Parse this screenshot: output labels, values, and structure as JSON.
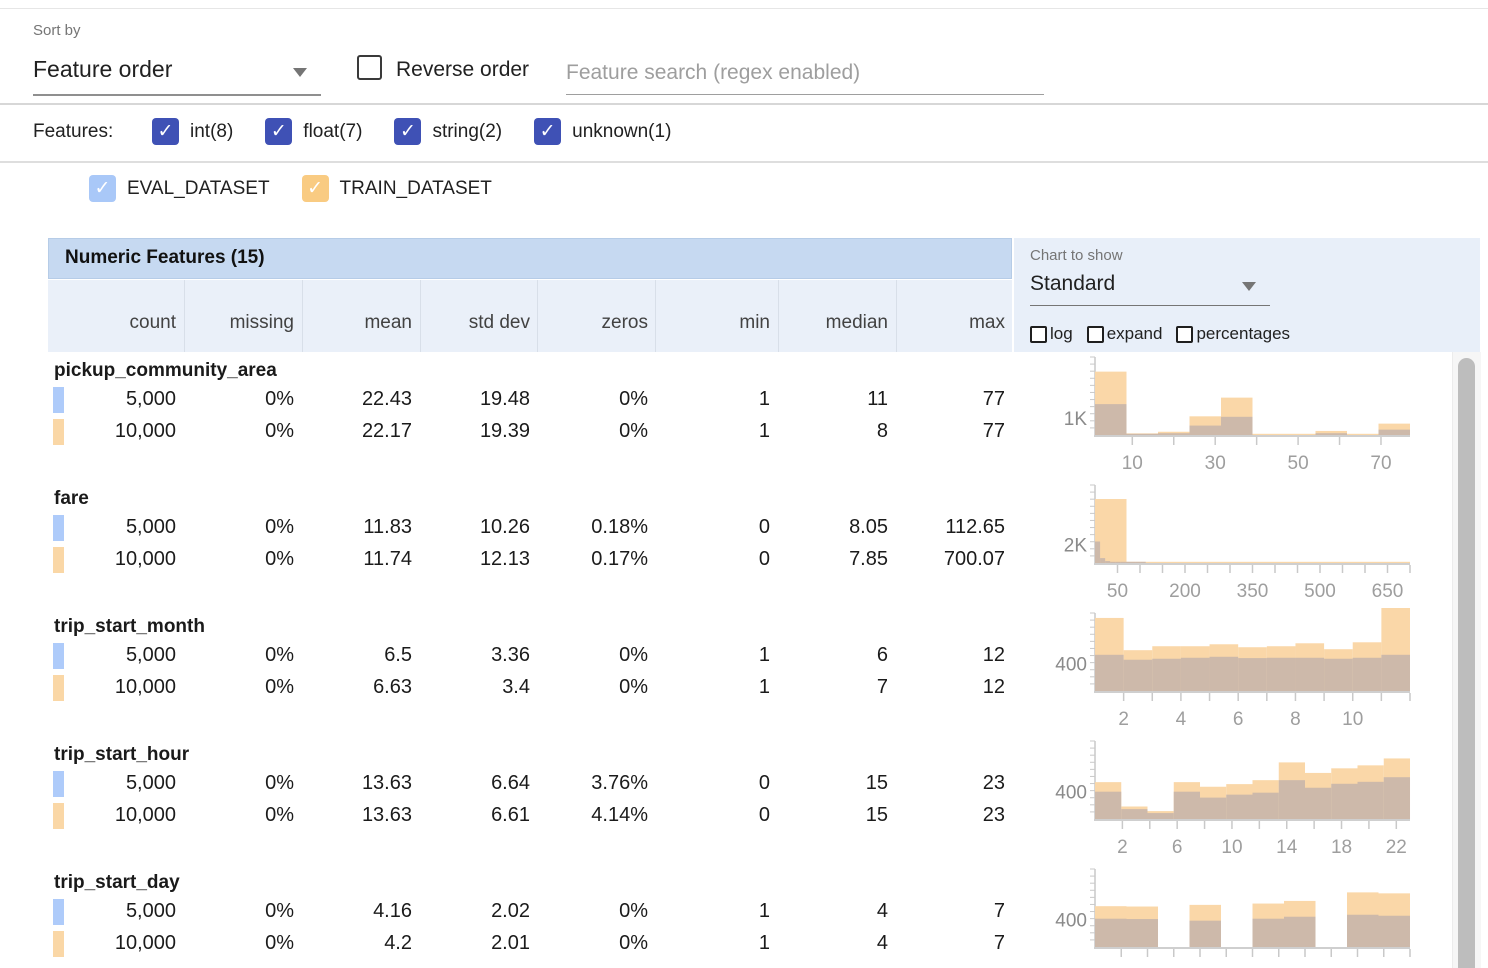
{
  "colors": {
    "indigo_checkbox": "#3f51b5",
    "eval_blue": "#aecbfa",
    "eval_checkbox": "#a9c8f8",
    "train_orange": "#fad7a6",
    "train_checkbox": "#f9cb82",
    "hist_train_fill": "#fad7a8",
    "hist_overlap_fill": "#cdb9aa",
    "table_header_bg": "#c6d9f1",
    "column_header_bg": "#eaf0f9",
    "right_panel_bg": "#e8eff9"
  },
  "controls": {
    "sort_by_label": "Sort by",
    "sort_by_value": "Feature order",
    "reverse_order_label": "Reverse order",
    "search_placeholder": "Feature search (regex enabled)",
    "features_label": "Features:",
    "feature_types": [
      {
        "label": "int(8)",
        "checked": true
      },
      {
        "label": "float(7)",
        "checked": true
      },
      {
        "label": "string(2)",
        "checked": true
      },
      {
        "label": "unknown(1)",
        "checked": true
      }
    ],
    "datasets": [
      {
        "label": "EVAL_DATASET",
        "checked": true,
        "color": "#a9c8f8"
      },
      {
        "label": "TRAIN_DATASET",
        "checked": true,
        "color": "#f9cb82"
      }
    ]
  },
  "chart_panel": {
    "chart_to_show_label": "Chart to show",
    "chart_type_value": "Standard",
    "options": [
      {
        "label": "log",
        "checked": false
      },
      {
        "label": "expand",
        "checked": false
      },
      {
        "label": "percentages",
        "checked": false
      }
    ]
  },
  "table": {
    "title": "Numeric Features (15)",
    "columns": [
      "count",
      "missing",
      "mean",
      "std dev",
      "zeros",
      "min",
      "median",
      "max"
    ],
    "features": [
      {
        "name": "pickup_community_area",
        "rows": [
          {
            "dataset": "EVAL_DATASET",
            "color": "#aecbfa",
            "values": [
              "5,000",
              "0%",
              "22.43",
              "19.48",
              "0%",
              "1",
              "11",
              "77"
            ]
          },
          {
            "dataset": "TRAIN_DATASET",
            "color": "#fad7a6",
            "values": [
              "10,000",
              "0%",
              "22.17",
              "19.39",
              "0%",
              "1",
              "8",
              "77"
            ]
          }
        ]
      },
      {
        "name": "fare",
        "rows": [
          {
            "dataset": "EVAL_DATASET",
            "color": "#aecbfa",
            "values": [
              "5,000",
              "0%",
              "11.83",
              "10.26",
              "0.18%",
              "0",
              "8.05",
              "112.65"
            ]
          },
          {
            "dataset": "TRAIN_DATASET",
            "color": "#fad7a6",
            "values": [
              "10,000",
              "0%",
              "11.74",
              "12.13",
              "0.17%",
              "0",
              "7.85",
              "700.07"
            ]
          }
        ]
      },
      {
        "name": "trip_start_month",
        "rows": [
          {
            "dataset": "EVAL_DATASET",
            "color": "#aecbfa",
            "values": [
              "5,000",
              "0%",
              "6.5",
              "3.36",
              "0%",
              "1",
              "6",
              "12"
            ]
          },
          {
            "dataset": "TRAIN_DATASET",
            "color": "#fad7a6",
            "values": [
              "10,000",
              "0%",
              "6.63",
              "3.4",
              "0%",
              "1",
              "7",
              "12"
            ]
          }
        ]
      },
      {
        "name": "trip_start_hour",
        "rows": [
          {
            "dataset": "EVAL_DATASET",
            "color": "#aecbfa",
            "values": [
              "5,000",
              "0%",
              "13.63",
              "6.64",
              "3.76%",
              "0",
              "15",
              "23"
            ]
          },
          {
            "dataset": "TRAIN_DATASET",
            "color": "#fad7a6",
            "values": [
              "10,000",
              "0%",
              "13.63",
              "6.61",
              "4.14%",
              "0",
              "15",
              "23"
            ]
          }
        ]
      },
      {
        "name": "trip_start_day",
        "rows": [
          {
            "dataset": "EVAL_DATASET",
            "color": "#aecbfa",
            "values": [
              "5,000",
              "0%",
              "4.16",
              "2.02",
              "0%",
              "1",
              "4",
              "7"
            ]
          },
          {
            "dataset": "TRAIN_DATASET",
            "color": "#fad7a6",
            "values": [
              "10,000",
              "0%",
              "4.2",
              "2.01",
              "0%",
              "1",
              "4",
              "7"
            ]
          }
        ]
      }
    ]
  },
  "chart_data": [
    {
      "type": "bar",
      "subtype": "overlaid_histogram",
      "feature": "pickup_community_area",
      "y_axis": {
        "label": "1K",
        "label_value": 1000,
        "max": 4800
      },
      "x_axis": {
        "min": 1,
        "max": 77,
        "minor_tick_step": 10,
        "tick_labels": [
          10,
          30,
          50,
          70
        ]
      },
      "series": [
        {
          "name": "TRAIN_DATASET",
          "color": "#fad7a8",
          "bin_start": 1,
          "bin_width": 7.6,
          "values": [
            3900,
            100,
            200,
            1150,
            2300,
            40,
            40,
            250,
            40,
            700
          ]
        },
        {
          "name": "EVAL_DATASET",
          "color": "#cdb9aa",
          "bin_start": 1,
          "bin_width": 7.6,
          "values": [
            1900,
            60,
            110,
            580,
            1120,
            0,
            0,
            110,
            0,
            330
          ]
        }
      ]
    },
    {
      "type": "bar",
      "subtype": "overlaid_histogram",
      "feature": "fare",
      "y_axis": {
        "label": "2K",
        "label_value": 2000,
        "max": 8900
      },
      "x_axis": {
        "min": 0,
        "max": 700,
        "minor_tick_step": 50,
        "tick_labels": [
          50,
          200,
          350,
          500,
          650
        ]
      },
      "series": [
        {
          "name": "TRAIN_DATASET",
          "color": "#fad7a8",
          "bin_start": 0,
          "bin_width": 70,
          "values": [
            7300,
            70,
            25,
            12,
            8,
            5,
            4,
            3,
            2,
            12
          ]
        },
        {
          "name": "EVAL_DATASET",
          "color": "#cdb9aa",
          "bin_start": 0,
          "bin_width": 11.27,
          "values": [
            2450,
            560,
            220,
            90,
            45,
            25,
            12,
            8,
            4,
            30
          ]
        }
      ]
    },
    {
      "type": "bar",
      "subtype": "overlaid_histogram",
      "feature": "trip_start_month",
      "y_axis": {
        "label": "400",
        "label_value": 400,
        "max": 1185
      },
      "x_axis": {
        "min": 1,
        "max": 12,
        "minor_tick_step": 1,
        "tick_labels": [
          2,
          4,
          6,
          8,
          10
        ]
      },
      "series": [
        {
          "name": "TRAIN_DATASET",
          "color": "#fad7a8",
          "bin_start": 1,
          "bin_width": 1,
          "values": [
            1110,
            620,
            680,
            680,
            710,
            665,
            680,
            725,
            635,
            740,
            1300
          ]
        },
        {
          "name": "EVAL_DATASET",
          "color": "#cdb9aa",
          "bin_start": 1,
          "bin_width": 1,
          "values": [
            550,
            475,
            490,
            505,
            520,
            500,
            505,
            505,
            490,
            505,
            550
          ]
        }
      ]
    },
    {
      "type": "bar",
      "subtype": "overlaid_histogram",
      "feature": "trip_start_hour",
      "y_axis": {
        "label": "400",
        "label_value": 400,
        "max": 1185
      },
      "x_axis": {
        "min": 0,
        "max": 23,
        "minor_tick_step": 2,
        "tick_labels": [
          2,
          6,
          10,
          14,
          18,
          22
        ]
      },
      "series": [
        {
          "name": "TRAIN_DATASET",
          "color": "#fad7a8",
          "bin_start": 0,
          "bin_width": 1.9167,
          "values": [
            560,
            190,
            120,
            560,
            490,
            530,
            590,
            860,
            700,
            770,
            815,
            920
          ]
        },
        {
          "name": "EVAL_DATASET",
          "color": "#cdb9aa",
          "bin_start": 0,
          "bin_width": 1.9167,
          "values": [
            415,
            150,
            90,
            415,
            325,
            370,
            400,
            590,
            475,
            535,
            565,
            635
          ]
        }
      ]
    },
    {
      "type": "bar",
      "subtype": "overlaid_histogram",
      "feature": "trip_start_day",
      "y_axis": {
        "label": "400",
        "label_value": 400,
        "max": 1185
      },
      "x_axis": {
        "min": 1,
        "max": 7,
        "minor_tick_step": 0.5,
        "tick_labels": []
      },
      "series": [
        {
          "name": "TRAIN_DATASET",
          "color": "#fad7a8",
          "bin_start": 1,
          "bin_width": 0.6,
          "values": [
            620,
            615,
            0,
            640,
            0,
            660,
            700,
            0,
            830,
            815
          ]
        },
        {
          "name": "EVAL_DATASET",
          "color": "#cdb9aa",
          "bin_start": 1,
          "bin_width": 0.6,
          "values": [
            430,
            425,
            0,
            400,
            0,
            430,
            460,
            0,
            490,
            475
          ]
        }
      ]
    }
  ]
}
